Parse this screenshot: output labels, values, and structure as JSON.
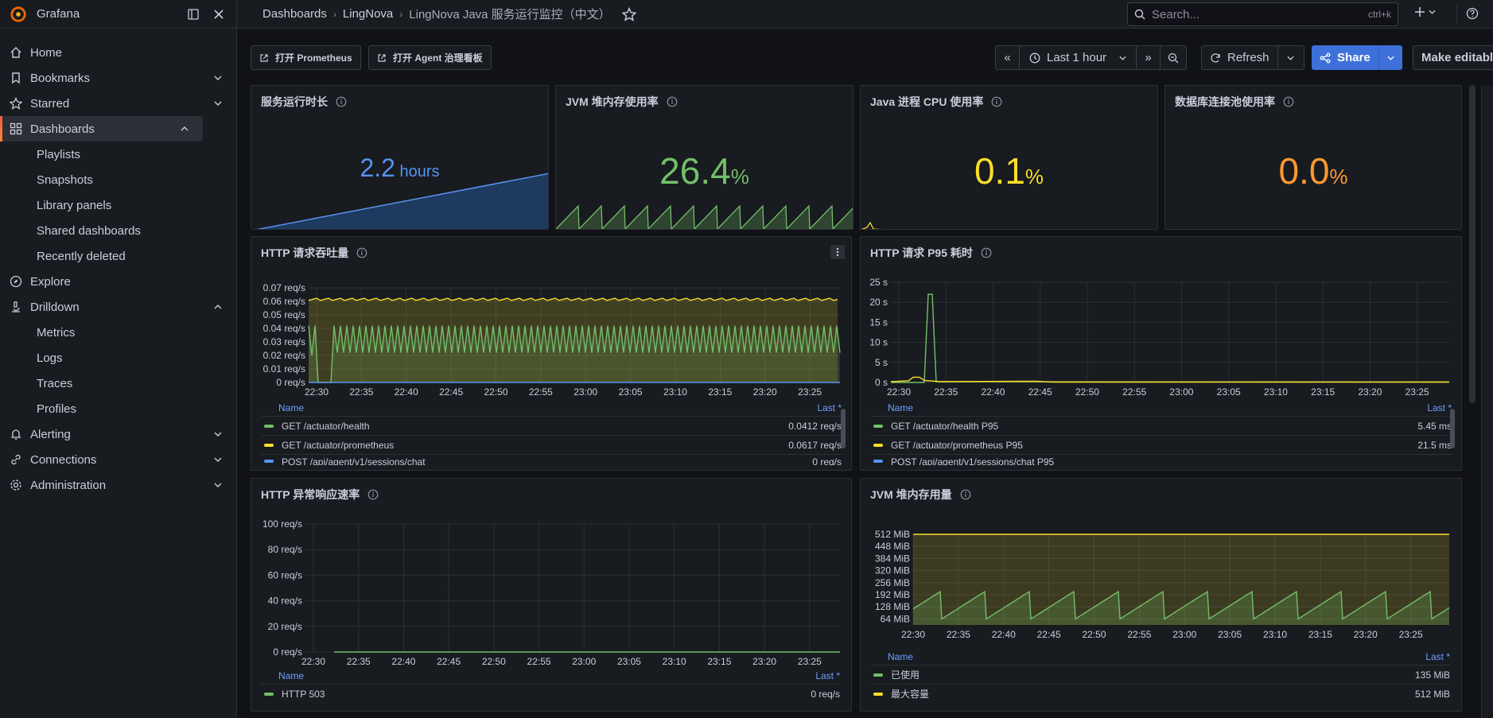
{
  "app": {
    "brand": "Grafana"
  },
  "sidebar": {
    "items": [
      {
        "label": "Home"
      },
      {
        "label": "Bookmarks"
      },
      {
        "label": "Starred"
      },
      {
        "label": "Dashboards"
      },
      {
        "label": "Explore"
      },
      {
        "label": "Drilldown"
      },
      {
        "label": "Alerting"
      },
      {
        "label": "Connections"
      },
      {
        "label": "Administration"
      }
    ],
    "dashboards_sub": [
      "Playlists",
      "Snapshots",
      "Library panels",
      "Shared dashboards",
      "Recently deleted"
    ],
    "drilldown_sub": [
      "Metrics",
      "Logs",
      "Traces",
      "Profiles"
    ]
  },
  "breadcrumb": {
    "root": "Dashboards",
    "folder": "LingNova",
    "current": "LingNova Java 服务运行监控（中文）"
  },
  "search": {
    "placeholder": "Search...",
    "shortcut": "ctrl+k"
  },
  "toolbar": {
    "link_prometheus": "打开 Prometheus",
    "link_agent": "打开 Agent 治理看板",
    "time_range": "Last 1 hour",
    "refresh": "Refresh",
    "share": "Share",
    "make_editable": "Make editable"
  },
  "stats": [
    {
      "title": "服务运行时长",
      "value": "2.2",
      "unit": " hours",
      "color": "#5794f2"
    },
    {
      "title": "JVM 堆内存使用率",
      "value": "26.4",
      "unit": "%",
      "color": "#73bf69"
    },
    {
      "title": "Java 进程 CPU 使用率",
      "value": "0.1",
      "unit": "%",
      "color": "#fade2a"
    },
    {
      "title": "数据库连接池使用率",
      "value": "0.0",
      "unit": "%",
      "color": "#ff9830"
    }
  ],
  "panels": {
    "throughput": {
      "title": "HTTP 请求吞吐量",
      "legend_name": "Name",
      "legend_last": "Last *",
      "rows": [
        {
          "name": "GET /actuator/health",
          "value": "0.0412 req/s",
          "color": "#73bf69"
        },
        {
          "name": "GET /actuator/prometheus",
          "value": "0.0617 req/s",
          "color": "#fade2a"
        },
        {
          "name": "POST /api/agent/v1/sessions/chat",
          "value": "0 req/s",
          "color": "#5794f2"
        }
      ]
    },
    "p95": {
      "title": "HTTP 请求 P95 耗时",
      "legend_name": "Name",
      "legend_last": "Last *",
      "rows": [
        {
          "name": "GET /actuator/health P95",
          "value": "5.45 ms",
          "color": "#73bf69"
        },
        {
          "name": "GET /actuator/prometheus P95",
          "value": "21.5 ms",
          "color": "#fade2a"
        },
        {
          "name": "POST /api/agent/v1/sessions/chat P95",
          "value": "",
          "color": "#5794f2"
        }
      ]
    },
    "errors": {
      "title": "HTTP 异常响应速率",
      "legend_name": "Name",
      "legend_last": "Last *",
      "rows": [
        {
          "name": "HTTP 503",
          "value": "0 req/s",
          "color": "#73bf69"
        }
      ]
    },
    "heap": {
      "title": "JVM 堆内存用量",
      "legend_name": "Name",
      "legend_last": "Last *",
      "rows": [
        {
          "name": "已使用",
          "value": "135 MiB",
          "color": "#73bf69"
        },
        {
          "name": "最大容量",
          "value": "512 MiB",
          "color": "#fade2a"
        }
      ]
    }
  },
  "chart_data": [
    {
      "type": "line",
      "title": "HTTP 请求吞吐量",
      "x_ticks": [
        "22:30",
        "22:35",
        "22:40",
        "22:45",
        "22:50",
        "22:55",
        "23:00",
        "23:05",
        "23:10",
        "23:15",
        "23:20",
        "23:25"
      ],
      "y_ticks": [
        "0 req/s",
        "0.01 req/s",
        "0.02 req/s",
        "0.03 req/s",
        "0.04 req/s",
        "0.05 req/s",
        "0.06 req/s",
        "0.07 req/s"
      ],
      "ylim": [
        0,
        0.07
      ],
      "series": [
        {
          "name": "GET /actuator/health",
          "last": 0.0412
        },
        {
          "name": "GET /actuator/prometheus",
          "last": 0.0617
        },
        {
          "name": "POST /api/agent/v1/sessions/chat",
          "last": 0
        }
      ]
    },
    {
      "type": "line",
      "title": "HTTP 请求 P95 耗时",
      "x_ticks": [
        "22:30",
        "22:35",
        "22:40",
        "22:45",
        "22:50",
        "22:55",
        "23:00",
        "23:05",
        "23:10",
        "23:15",
        "23:20",
        "23:25"
      ],
      "y_ticks": [
        "0 s",
        "5 s",
        "10 s",
        "15 s",
        "20 s",
        "25 s"
      ],
      "ylim": [
        0,
        25
      ],
      "series": [
        {
          "name": "GET /actuator/health P95",
          "last_ms": 5.45
        },
        {
          "name": "GET /actuator/prometheus P95",
          "last_ms": 21.5
        },
        {
          "name": "POST /api/agent/v1/sessions/chat P95"
        }
      ]
    },
    {
      "type": "line",
      "title": "HTTP 异常响应速率",
      "x_ticks": [
        "22:30",
        "22:35",
        "22:40",
        "22:45",
        "22:50",
        "22:55",
        "23:00",
        "23:05",
        "23:10",
        "23:15",
        "23:20",
        "23:25"
      ],
      "y_ticks": [
        "0 req/s",
        "20 req/s",
        "40 req/s",
        "60 req/s",
        "80 req/s",
        "100 req/s"
      ],
      "ylim": [
        0,
        100
      ],
      "series": [
        {
          "name": "HTTP 503",
          "last": 0
        }
      ]
    },
    {
      "type": "line",
      "title": "JVM 堆内存用量",
      "x_ticks": [
        "22:30",
        "22:35",
        "22:40",
        "22:45",
        "22:50",
        "22:55",
        "23:00",
        "23:05",
        "23:10",
        "23:15",
        "23:20",
        "23:25"
      ],
      "y_ticks": [
        "64 MiB",
        "128 MiB",
        "192 MiB",
        "256 MiB",
        "320 MiB",
        "384 MiB",
        "448 MiB",
        "512 MiB"
      ],
      "ylim": [
        32,
        512
      ],
      "series": [
        {
          "name": "已使用",
          "last_mib": 135
        },
        {
          "name": "最大容量",
          "last_mib": 512
        }
      ]
    }
  ]
}
